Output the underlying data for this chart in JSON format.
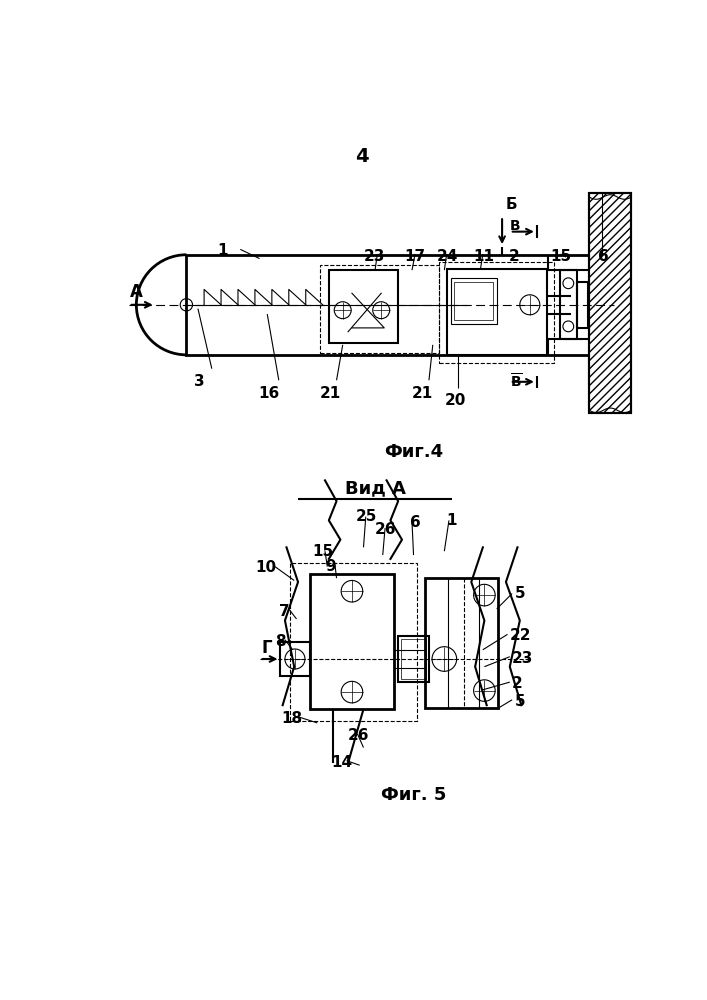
{
  "page_number": "4",
  "fig4_caption": "Фиг.4",
  "fig5_caption": "Фиг. 5",
  "vid_a_label": "Вид А",
  "background": "#ffffff",
  "line_color": "#000000"
}
